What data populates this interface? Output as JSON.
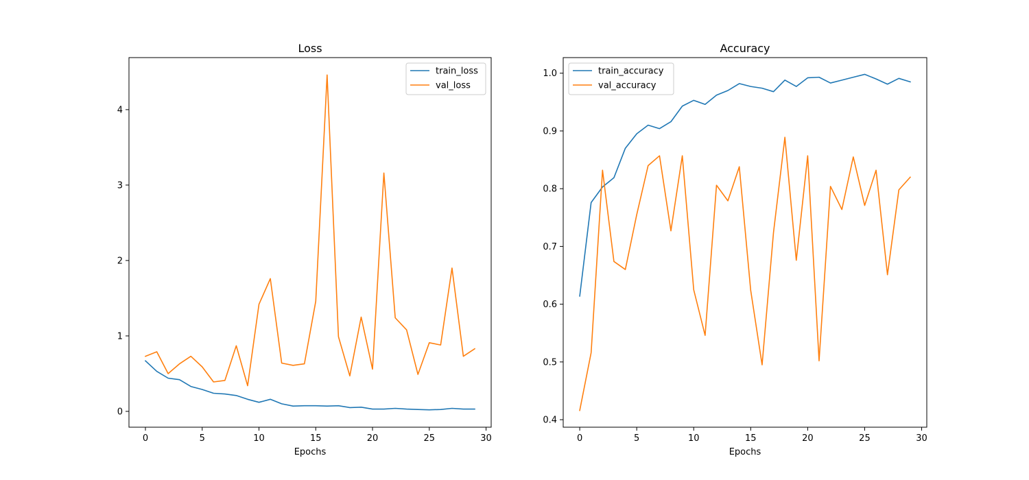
{
  "chart_data": [
    {
      "type": "line",
      "title": "Loss",
      "xlabel": "Epochs",
      "ylabel": "",
      "xlim": [
        -1.45,
        30.45
      ],
      "ylim": [
        -0.21,
        4.69
      ],
      "xticks": [
        0,
        5,
        10,
        15,
        20,
        25,
        30
      ],
      "yticks": [
        0,
        1,
        2,
        3,
        4
      ],
      "legend_position": "top-right",
      "x": [
        0,
        1,
        2,
        3,
        4,
        5,
        6,
        7,
        8,
        9,
        10,
        11,
        12,
        13,
        14,
        15,
        16,
        17,
        18,
        19,
        20,
        21,
        22,
        23,
        24,
        25,
        26,
        27,
        28,
        29
      ],
      "series": [
        {
          "name": "train_loss",
          "color": "#1f77b4",
          "values": [
            0.67,
            0.53,
            0.44,
            0.42,
            0.33,
            0.29,
            0.24,
            0.23,
            0.21,
            0.16,
            0.12,
            0.16,
            0.1,
            0.07,
            0.075,
            0.075,
            0.07,
            0.075,
            0.05,
            0.055,
            0.03,
            0.03,
            0.04,
            0.03,
            0.025,
            0.02,
            0.025,
            0.04,
            0.03,
            0.03
          ]
        },
        {
          "name": "val_loss",
          "color": "#ff7f0e",
          "values": [
            0.73,
            0.79,
            0.5,
            0.63,
            0.73,
            0.59,
            0.39,
            0.41,
            0.87,
            0.34,
            1.42,
            1.76,
            0.64,
            0.61,
            0.63,
            1.46,
            4.46,
            0.99,
            0.47,
            1.25,
            0.56,
            3.16,
            1.24,
            1.08,
            0.49,
            0.91,
            0.88,
            1.9,
            0.73,
            0.83
          ]
        }
      ]
    },
    {
      "type": "line",
      "title": "Accuracy",
      "xlabel": "Epochs",
      "ylabel": "",
      "xlim": [
        -1.45,
        30.45
      ],
      "ylim": [
        0.387,
        1.027
      ],
      "xticks": [
        0,
        5,
        10,
        15,
        20,
        25,
        30
      ],
      "yticks": [
        0.4,
        0.5,
        0.6,
        0.7,
        0.8,
        0.9,
        1.0
      ],
      "ytick_labels": [
        "0.4",
        "0.5",
        "0.6",
        "0.7",
        "0.8",
        "0.9",
        "1.0"
      ],
      "legend_position": "top-left",
      "x": [
        0,
        1,
        2,
        3,
        4,
        5,
        6,
        7,
        8,
        9,
        10,
        11,
        12,
        13,
        14,
        15,
        16,
        17,
        18,
        19,
        20,
        21,
        22,
        23,
        24,
        25,
        26,
        27,
        28,
        29
      ],
      "series": [
        {
          "name": "train_accuracy",
          "color": "#1f77b4",
          "values": [
            0.614,
            0.776,
            0.803,
            0.819,
            0.87,
            0.895,
            0.91,
            0.904,
            0.916,
            0.943,
            0.953,
            0.946,
            0.962,
            0.97,
            0.982,
            0.977,
            0.974,
            0.968,
            0.988,
            0.977,
            0.992,
            0.993,
            0.983,
            0.988,
            0.993,
            0.998,
            0.99,
            0.981,
            0.991,
            0.985
          ]
        },
        {
          "name": "val_accuracy",
          "color": "#ff7f0e",
          "values": [
            0.416,
            0.516,
            0.832,
            0.674,
            0.66,
            0.755,
            0.84,
            0.857,
            0.727,
            0.857,
            0.625,
            0.546,
            0.806,
            0.779,
            0.838,
            0.624,
            0.495,
            0.724,
            0.889,
            0.676,
            0.857,
            0.502,
            0.804,
            0.764,
            0.855,
            0.771,
            0.832,
            0.651,
            0.798,
            0.82
          ]
        }
      ]
    }
  ]
}
